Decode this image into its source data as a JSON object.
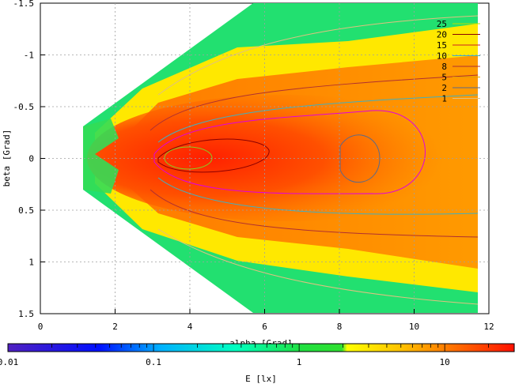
{
  "chart_data": {
    "type": "heatmap",
    "xlabel": "alpha [Grad]",
    "ylabel": "beta [Grad]",
    "xlim": [
      0,
      12
    ],
    "ylim": [
      1.5,
      -1.5
    ],
    "x_ticks": [
      "0",
      "2",
      "4",
      "6",
      "8",
      "10",
      "12"
    ],
    "y_ticks": [
      "-1.5",
      "-1",
      "-0.5",
      "0",
      "0.5",
      "1",
      "1.5"
    ],
    "grid": true,
    "colorbar": {
      "label": "E [lx]",
      "scale": "log",
      "range": [
        0.01,
        30
      ],
      "ticks": [
        "0.01",
        "0.1",
        "1",
        "10"
      ]
    },
    "contour_legend": {
      "placement": "top-right",
      "levels": [
        "25",
        "20",
        "15",
        "10",
        "8",
        "5",
        "2",
        "1"
      ],
      "colors": [
        "#b8e000",
        "#8b0000",
        "#cc2222",
        "#40b0c0",
        "#b03030",
        "#e0a000",
        "#5a6a8a",
        "#e0c080"
      ]
    },
    "peak": {
      "x": 4.0,
      "y": 0.0,
      "approx_value": 25
    }
  }
}
